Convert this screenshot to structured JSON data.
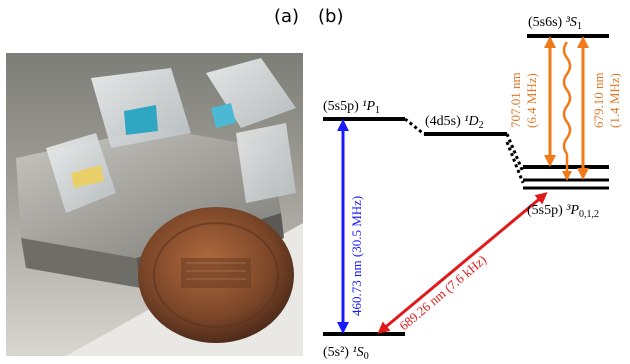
{
  "figure": {
    "panel_a_label": "(a)",
    "panel_b_label": "(b)"
  },
  "photo": {
    "subject": "coin beside glass prisms on a metal mount"
  },
  "levels": {
    "s6s_config": "(5s6s)",
    "s6s_term": "³S",
    "s6s_sub": "1",
    "p1_config": "(5s5p)",
    "p1_term": "¹P",
    "p1_sub": "1",
    "d2_config": "(4d5s)",
    "d2_term": "¹D",
    "d2_sub": "2",
    "p012_config": "(5s5p)",
    "p012_term": "³P",
    "p012_sub": "0,1,2",
    "ground_config": "(5s²)",
    "ground_term": "¹S",
    "ground_sub": "0"
  },
  "transitions": {
    "blue_wavelength": "460.73 nm (30.5 MHz)",
    "red_wavelength": "689.26 nm (7.6 kHz)",
    "orange1_wavelength": "707.01 nm",
    "orange1_width": "(6.4 MHz)",
    "orange2_wavelength": "679.10 nm",
    "orange2_width": "(1.4 MHz)"
  },
  "colors": {
    "blue": "#1a1aff",
    "red": "#e01a1a",
    "orange": "#f07a1a",
    "orange_text": "#e07a2a",
    "level": "#000000"
  }
}
